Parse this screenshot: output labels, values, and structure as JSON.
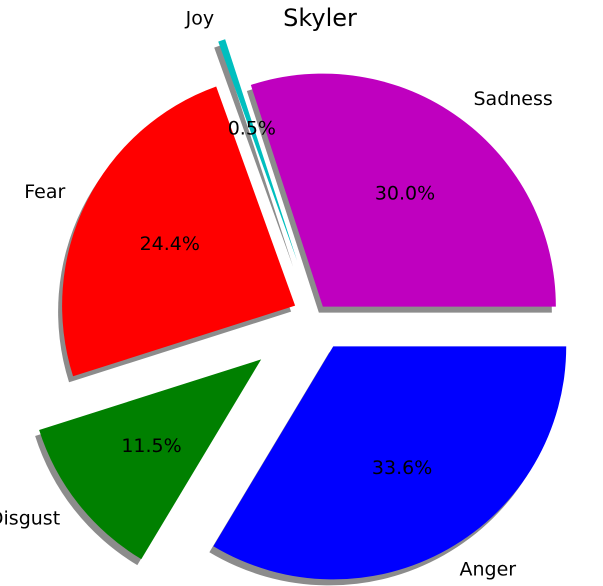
{
  "chart_data": {
    "type": "pie",
    "title": "Skyler",
    "start_angle_deg": 0,
    "direction": "counterclockwise",
    "shadow": true,
    "slices": [
      {
        "label": "Sadness",
        "value": 30.0,
        "pct_label": "30.0%",
        "color": "#bf00bf",
        "explode": 0.05
      },
      {
        "label": "Joy",
        "value": 0.5,
        "pct_label": "0.5%",
        "color": "#00bfbf",
        "explode": 0.25
      },
      {
        "label": "Fear",
        "value": 24.4,
        "pct_label": "24.4%",
        "color": "#ff0000",
        "explode": 0.1
      },
      {
        "label": "Disgust",
        "value": 11.5,
        "pct_label": "11.5%",
        "color": "#008000",
        "explode": 0.3
      },
      {
        "label": "Anger",
        "value": 33.6,
        "pct_label": "33.6%",
        "color": "#0000ff",
        "explode": 0.15
      }
    ]
  }
}
